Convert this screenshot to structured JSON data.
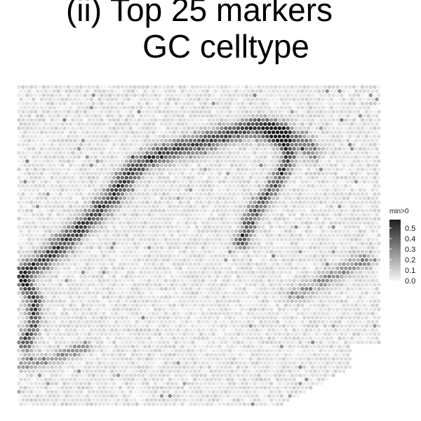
{
  "chart_data": {
    "type": "heatmap",
    "title_line1": "(ii) Top 25 markers",
    "title_line2": "GC celltype",
    "xlabel": "",
    "ylabel": "",
    "legend": {
      "title": "min>0",
      "ticks": [
        "0.5",
        "0.4",
        "0.3",
        "0.2",
        "0.1",
        "0.0"
      ],
      "tick_values": [
        0.5,
        0.4,
        0.3,
        0.2,
        0.1,
        0.0
      ],
      "range": [
        0.0,
        0.58
      ],
      "color_low": "#f7f7f7",
      "color_high": "#1e1e1e",
      "placement": "right"
    },
    "spots": {
      "description_grid": "hexagonal spatial spot grid of expression scores",
      "cols": 88,
      "rows": 78
    }
  }
}
